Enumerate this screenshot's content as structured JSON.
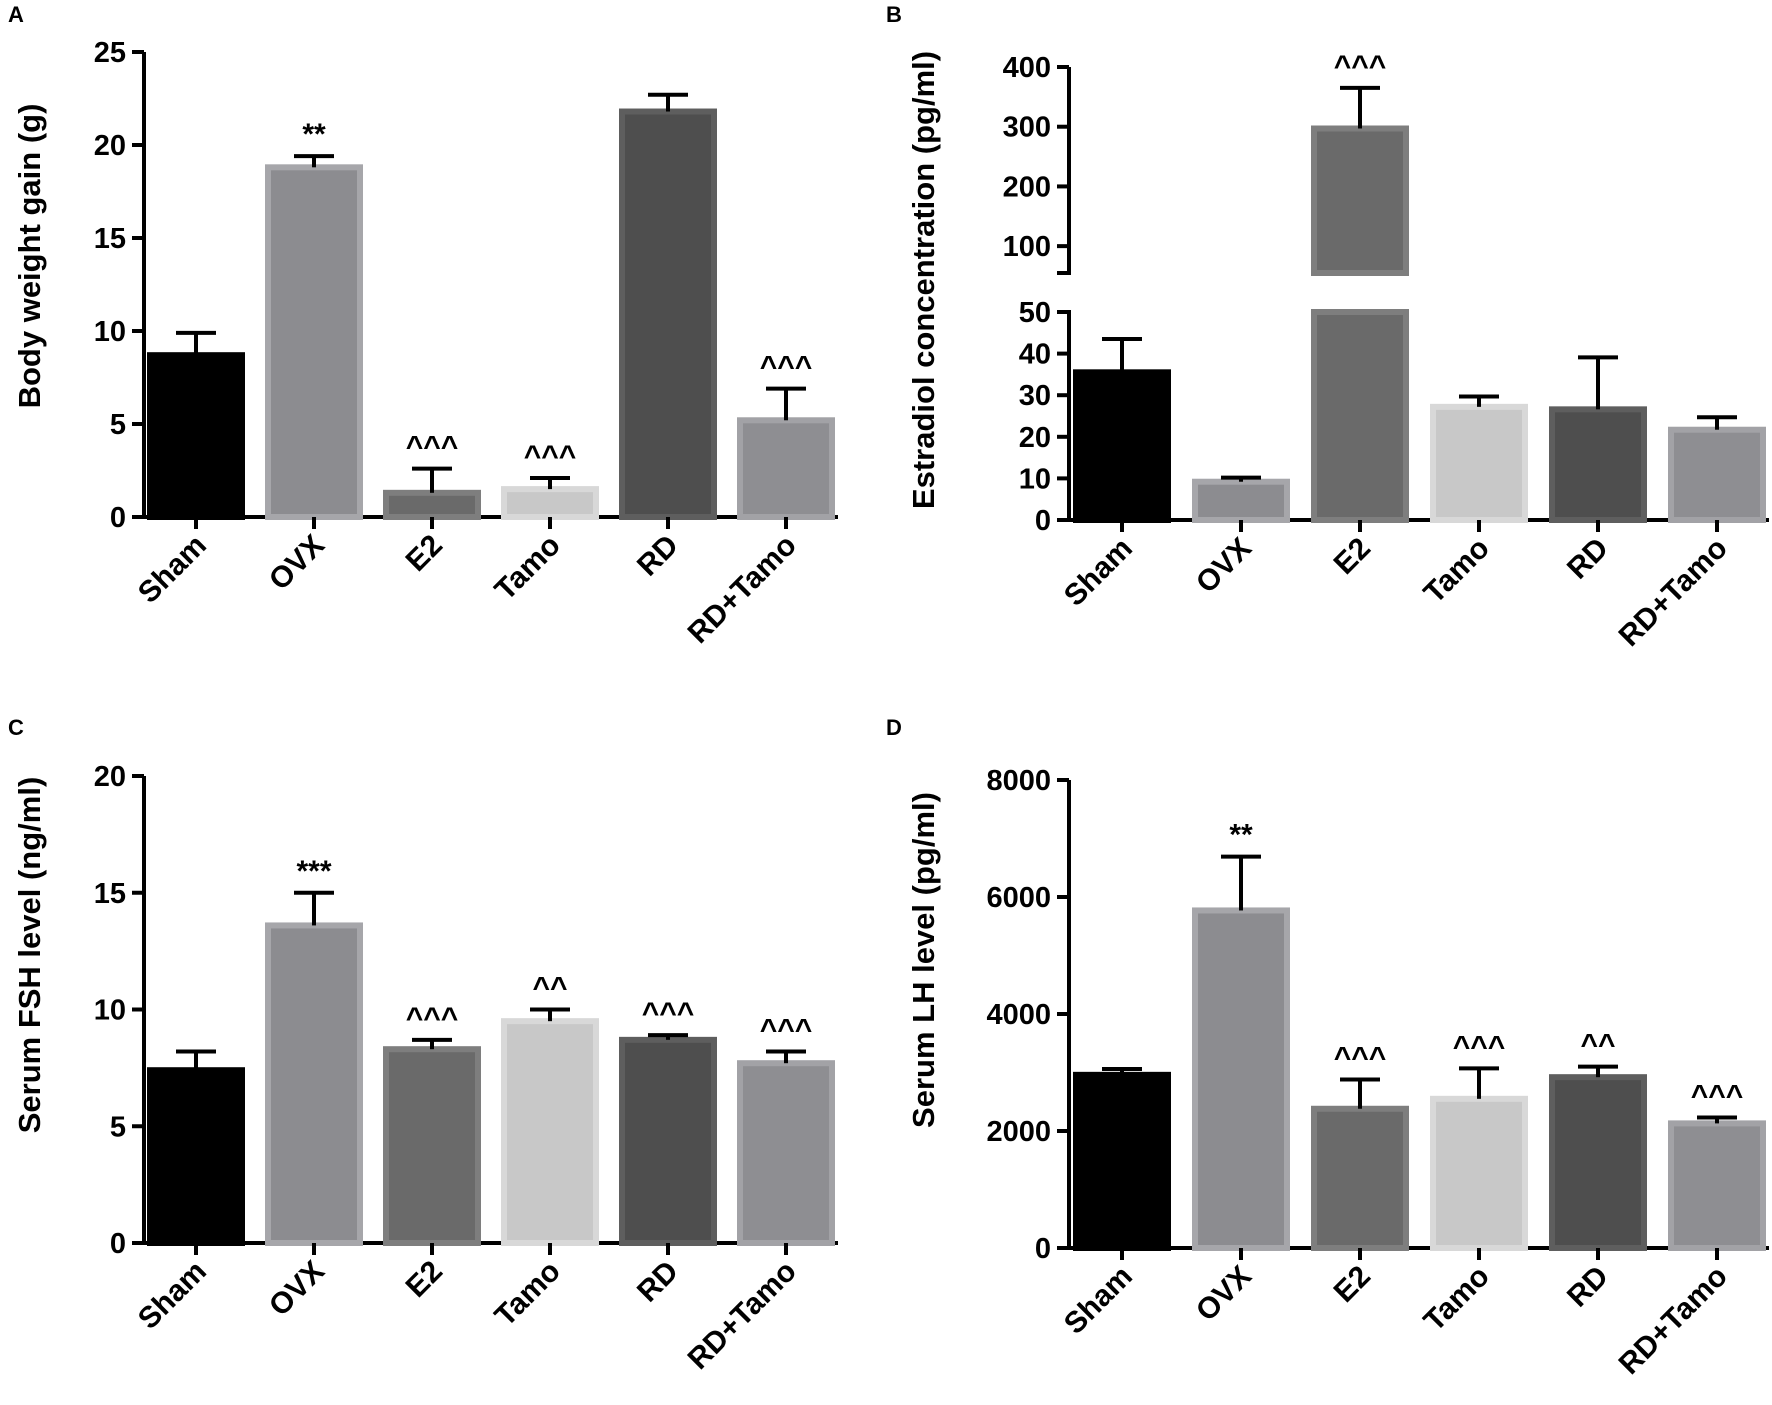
{
  "chart_data": [
    {
      "panel": "A",
      "type": "bar",
      "ylabel": "Body weight gain (g)",
      "ylim": [
        0,
        25
      ],
      "yticks": [
        0,
        5,
        10,
        15,
        20,
        25
      ],
      "yticklabels": [
        "0",
        "5",
        "10",
        "15",
        "20",
        "25"
      ],
      "categories": [
        "Sham",
        "OVX",
        "E2",
        "Tamo",
        "RD",
        "RD+Tamo"
      ],
      "values": [
        8.7,
        18.8,
        1.3,
        1.5,
        21.8,
        5.2
      ],
      "errors": [
        1.2,
        0.6,
        1.3,
        0.6,
        0.9,
        1.7
      ],
      "annotations": [
        "",
        "**",
        "^^^",
        "^^^",
        "",
        "^^^"
      ]
    },
    {
      "panel": "B",
      "type": "bar",
      "broken_axis": true,
      "ylabel": "Estradiol concentration (pg/ml)",
      "ylim_lower": [
        0,
        50
      ],
      "ylim_upper": [
        55,
        400
      ],
      "yticks_lower": [
        0,
        10,
        20,
        30,
        40,
        50
      ],
      "yticklabels_lower": [
        "0",
        "10",
        "20",
        "30",
        "40",
        "50"
      ],
      "yticks_upper": [
        100,
        200,
        300,
        400
      ],
      "yticklabels_upper": [
        "100",
        "200",
        "300",
        "400"
      ],
      "categories": [
        "Sham",
        "OVX",
        "E2",
        "Tamo",
        "RD",
        "RD+Tamo"
      ],
      "values": [
        35.5,
        9.2,
        297,
        27.2,
        26.6,
        21.7
      ],
      "errors": [
        8.0,
        1.0,
        68,
        2.5,
        12.5,
        3.0
      ],
      "annotations": [
        "",
        "",
        "^^^",
        "",
        "",
        ""
      ]
    },
    {
      "panel": "C",
      "type": "bar",
      "ylabel": "Serum FSH level (ng/ml)",
      "ylim": [
        0,
        20
      ],
      "yticks": [
        0,
        5,
        10,
        15,
        20
      ],
      "yticklabels": [
        "0",
        "5",
        "10",
        "15",
        "20"
      ],
      "categories": [
        "Sham",
        "OVX",
        "E2",
        "Tamo",
        "RD",
        "RD+Tamo"
      ],
      "values": [
        7.4,
        13.6,
        8.3,
        9.5,
        8.7,
        7.7
      ],
      "errors": [
        0.8,
        1.4,
        0.4,
        0.5,
        0.2,
        0.5
      ],
      "annotations": [
        "",
        "***",
        "^^^",
        "^^",
        "^^^",
        "^^^"
      ]
    },
    {
      "panel": "D",
      "type": "bar",
      "ylabel": "Serum LH level (pg/ml)",
      "ylim": [
        0,
        8000
      ],
      "yticks": [
        0,
        2000,
        4000,
        6000,
        8000
      ],
      "yticklabels": [
        "0",
        "2000",
        "4000",
        "6000",
        "8000"
      ],
      "categories": [
        "Sham",
        "OVX",
        "E2",
        "Tamo",
        "RD",
        "RD+Tamo"
      ],
      "values": [
        2960,
        5770,
        2380,
        2550,
        2920,
        2130
      ],
      "errors": [
        100,
        920,
        500,
        520,
        180,
        100
      ],
      "annotations": [
        "",
        "**",
        "^^^",
        "^^^",
        "^^",
        "^^^"
      ]
    }
  ],
  "bar_colors": [
    "#000000",
    "#8c8c90",
    "#6a6a6a",
    "#c8c8c8",
    "#4e4e4e",
    "#8e8e92"
  ],
  "bar_edge_colors": [
    "#000000",
    "#a6a6aa",
    "#7e7e7e",
    "#d8d8d8",
    "#5e5e5e",
    "#a2a2a6"
  ]
}
